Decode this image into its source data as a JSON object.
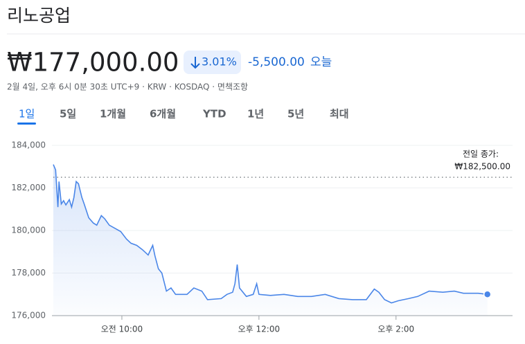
{
  "header": {
    "title": "리노공업",
    "price": "₩177,000.00",
    "change_percent": "3.01%",
    "change": "-5,500.00",
    "period_label": "오늘",
    "info": "2월 4일, 오후 6시 0분 30초 UTC+9 · KRW · KOSDAQ · 면책조항"
  },
  "tabs": [
    "1일",
    "5일",
    "1개월",
    "6개월",
    "YTD",
    "1년",
    "5년",
    "최대"
  ],
  "selected_tab": 0,
  "chart_data": {
    "type": "line",
    "color": "#4a86e8",
    "grid": true,
    "x": [
      540,
      542,
      544,
      545,
      547,
      549,
      551,
      554,
      556,
      558,
      560,
      562,
      565,
      567,
      571,
      575,
      578,
      582,
      585,
      589,
      594,
      599,
      604,
      608,
      613,
      618,
      623,
      627,
      629,
      632,
      635,
      639,
      643,
      647,
      657,
      663,
      670,
      675,
      687,
      692,
      697,
      699,
      701,
      703,
      709,
      715,
      718,
      720,
      730,
      742,
      754,
      766,
      778,
      790,
      802,
      814,
      821,
      825,
      830,
      836,
      842,
      851,
      859,
      869,
      881,
      891,
      899,
      912,
      920
    ],
    "values": [
      183100,
      182850,
      181100,
      182300,
      181250,
      181400,
      181200,
      181450,
      181100,
      181550,
      182300,
      182200,
      181550,
      181250,
      180600,
      180350,
      180250,
      180700,
      180550,
      180250,
      180100,
      179950,
      179600,
      179400,
      179300,
      179100,
      178850,
      179300,
      178800,
      178200,
      178000,
      177150,
      177300,
      177000,
      177000,
      177300,
      177150,
      176750,
      176800,
      177000,
      177100,
      177500,
      178400,
      177300,
      176900,
      177000,
      177500,
      177000,
      176950,
      177000,
      176900,
      176900,
      177000,
      176800,
      176750,
      176750,
      177250,
      177100,
      176750,
      176600,
      176700,
      176800,
      176900,
      177150,
      177100,
      177150,
      177050,
      177050,
      177000
    ],
    "xlim": [
      540,
      942
    ],
    "xticks": [
      {
        "value": 600,
        "label": "오전 10:00"
      },
      {
        "value": 720,
        "label": "오후 12:00"
      },
      {
        "value": 840,
        "label": "오후 2:00"
      }
    ],
    "ylim": [
      176000,
      184000
    ],
    "yticks": [
      {
        "value": 176000,
        "label": "176,000"
      },
      {
        "value": 178000,
        "label": "178,000"
      },
      {
        "value": 180000,
        "label": "180,000"
      },
      {
        "value": 182000,
        "label": "182,000"
      },
      {
        "value": 184000,
        "label": "184,000"
      }
    ],
    "previous_close_title": "전일 종가:",
    "previous_close": {
      "value": 182500,
      "label": "₩182,500.00"
    }
  }
}
